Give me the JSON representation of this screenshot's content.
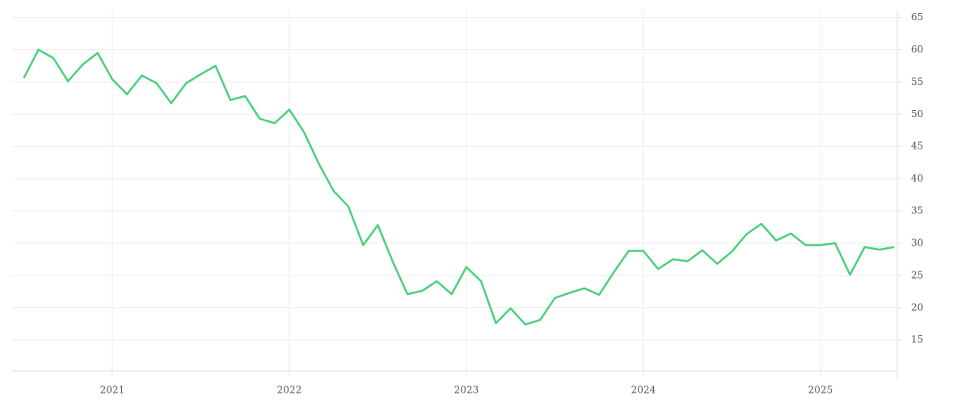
{
  "chart_data": {
    "type": "line",
    "x": [
      2020.5,
      2020.583,
      2020.667,
      2020.75,
      2020.833,
      2020.917,
      2021,
      2021.083,
      2021.167,
      2021.25,
      2021.333,
      2021.417,
      2021.5,
      2021.583,
      2021.667,
      2021.75,
      2021.833,
      2021.917,
      2022,
      2022.083,
      2022.167,
      2022.25,
      2022.333,
      2022.417,
      2022.5,
      2022.583,
      2022.667,
      2022.75,
      2022.833,
      2022.917,
      2023,
      2023.083,
      2023.167,
      2023.25,
      2023.333,
      2023.417,
      2023.5,
      2023.583,
      2023.667,
      2023.75,
      2023.833,
      2023.917,
      2024,
      2024.083,
      2024.167,
      2024.25,
      2024.333,
      2024.417,
      2024.5,
      2024.583,
      2024.667,
      2024.75,
      2024.833,
      2024.917,
      2025,
      2025.083,
      2025.167,
      2025.25,
      2025.333,
      2025.417
    ],
    "series": [
      {
        "color": "#4cd07d",
        "values": [
          55.6,
          60.0,
          58.7,
          55.1,
          57.7,
          59.5,
          55.4,
          53.1,
          56.0,
          54.8,
          51.7,
          54.8,
          56.2,
          57.5,
          52.2,
          52.8,
          49.3,
          48.6,
          50.7,
          47.2,
          42.3,
          38.1,
          35.7,
          29.7,
          32.8,
          27.2,
          22.1,
          22.6,
          24.1,
          22.1,
          26.3,
          24.1,
          17.6,
          19.9,
          17.4,
          18.1,
          21.5,
          22.3,
          23.0,
          22.0,
          25.5,
          28.8,
          28.8,
          26.0,
          27.5,
          27.2,
          28.9,
          26.8,
          28.7,
          31.4,
          33.0,
          30.4,
          31.5,
          29.7,
          29.7,
          30.0,
          25.1,
          29.4,
          29.0,
          29.4
        ]
      }
    ],
    "xlim": [
      2020.434,
      2025.434
    ],
    "xticks": [
      2021,
      2022,
      2023,
      2024,
      2025
    ],
    "ylim": [
      10.2,
      66.2
    ],
    "yticks": [
      15,
      20,
      25,
      30,
      35,
      40,
      45,
      50,
      55,
      60,
      65
    ],
    "grid": true
  }
}
